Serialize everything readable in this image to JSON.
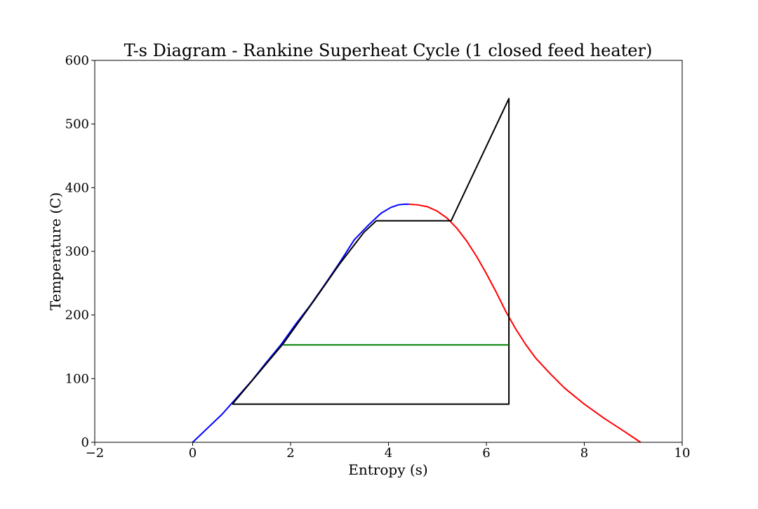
{
  "chart_data": {
    "type": "line",
    "title": "T-s Diagram - Rankine Superheat Cycle (1 closed feed heater)",
    "xlabel": "Entropy (s)",
    "ylabel": "Temperature (C)",
    "xlim": [
      -2,
      10
    ],
    "ylim": [
      0,
      600
    ],
    "xticks": [
      -2,
      0,
      2,
      4,
      6,
      8,
      10
    ],
    "yticks": [
      0,
      100,
      200,
      300,
      400,
      500,
      600
    ],
    "grid": false,
    "legend": "none",
    "series": [
      {
        "color": "#0000ff",
        "x": [
          0.0,
          0.3,
          0.6,
          0.9,
          1.2,
          1.5,
          1.8,
          2.1,
          2.4,
          2.7,
          3.0,
          3.3,
          3.6,
          3.85,
          4.05,
          4.2,
          4.32,
          4.42
        ],
        "y": [
          0,
          22,
          44,
          70,
          96,
          125,
          153,
          185,
          215,
          248,
          282,
          318,
          342,
          360,
          369,
          373,
          374,
          374
        ]
      },
      {
        "color": "#ff0000",
        "x": [
          4.42,
          4.6,
          4.8,
          5.0,
          5.2,
          5.4,
          5.6,
          5.8,
          6.0,
          6.2,
          6.4,
          6.6,
          6.8,
          7.0,
          7.3,
          7.6,
          8.0,
          8.4,
          8.8,
          9.15
        ],
        "y": [
          374,
          373,
          370,
          363,
          352,
          336,
          316,
          292,
          265,
          236,
          205,
          178,
          154,
          133,
          108,
          85,
          60,
          38,
          18,
          0
        ]
      },
      {
        "color": "#000000",
        "x": [
          0.81,
          1.85,
          2.5,
          3.0,
          3.5,
          3.75,
          5.28,
          6.46,
          6.46,
          0.81
        ],
        "y": [
          60,
          155,
          225,
          280,
          330,
          348,
          348,
          540,
          60,
          60
        ]
      },
      {
        "color": "#008000",
        "x": [
          1.85,
          6.46
        ],
        "y": [
          153,
          153
        ]
      }
    ]
  }
}
